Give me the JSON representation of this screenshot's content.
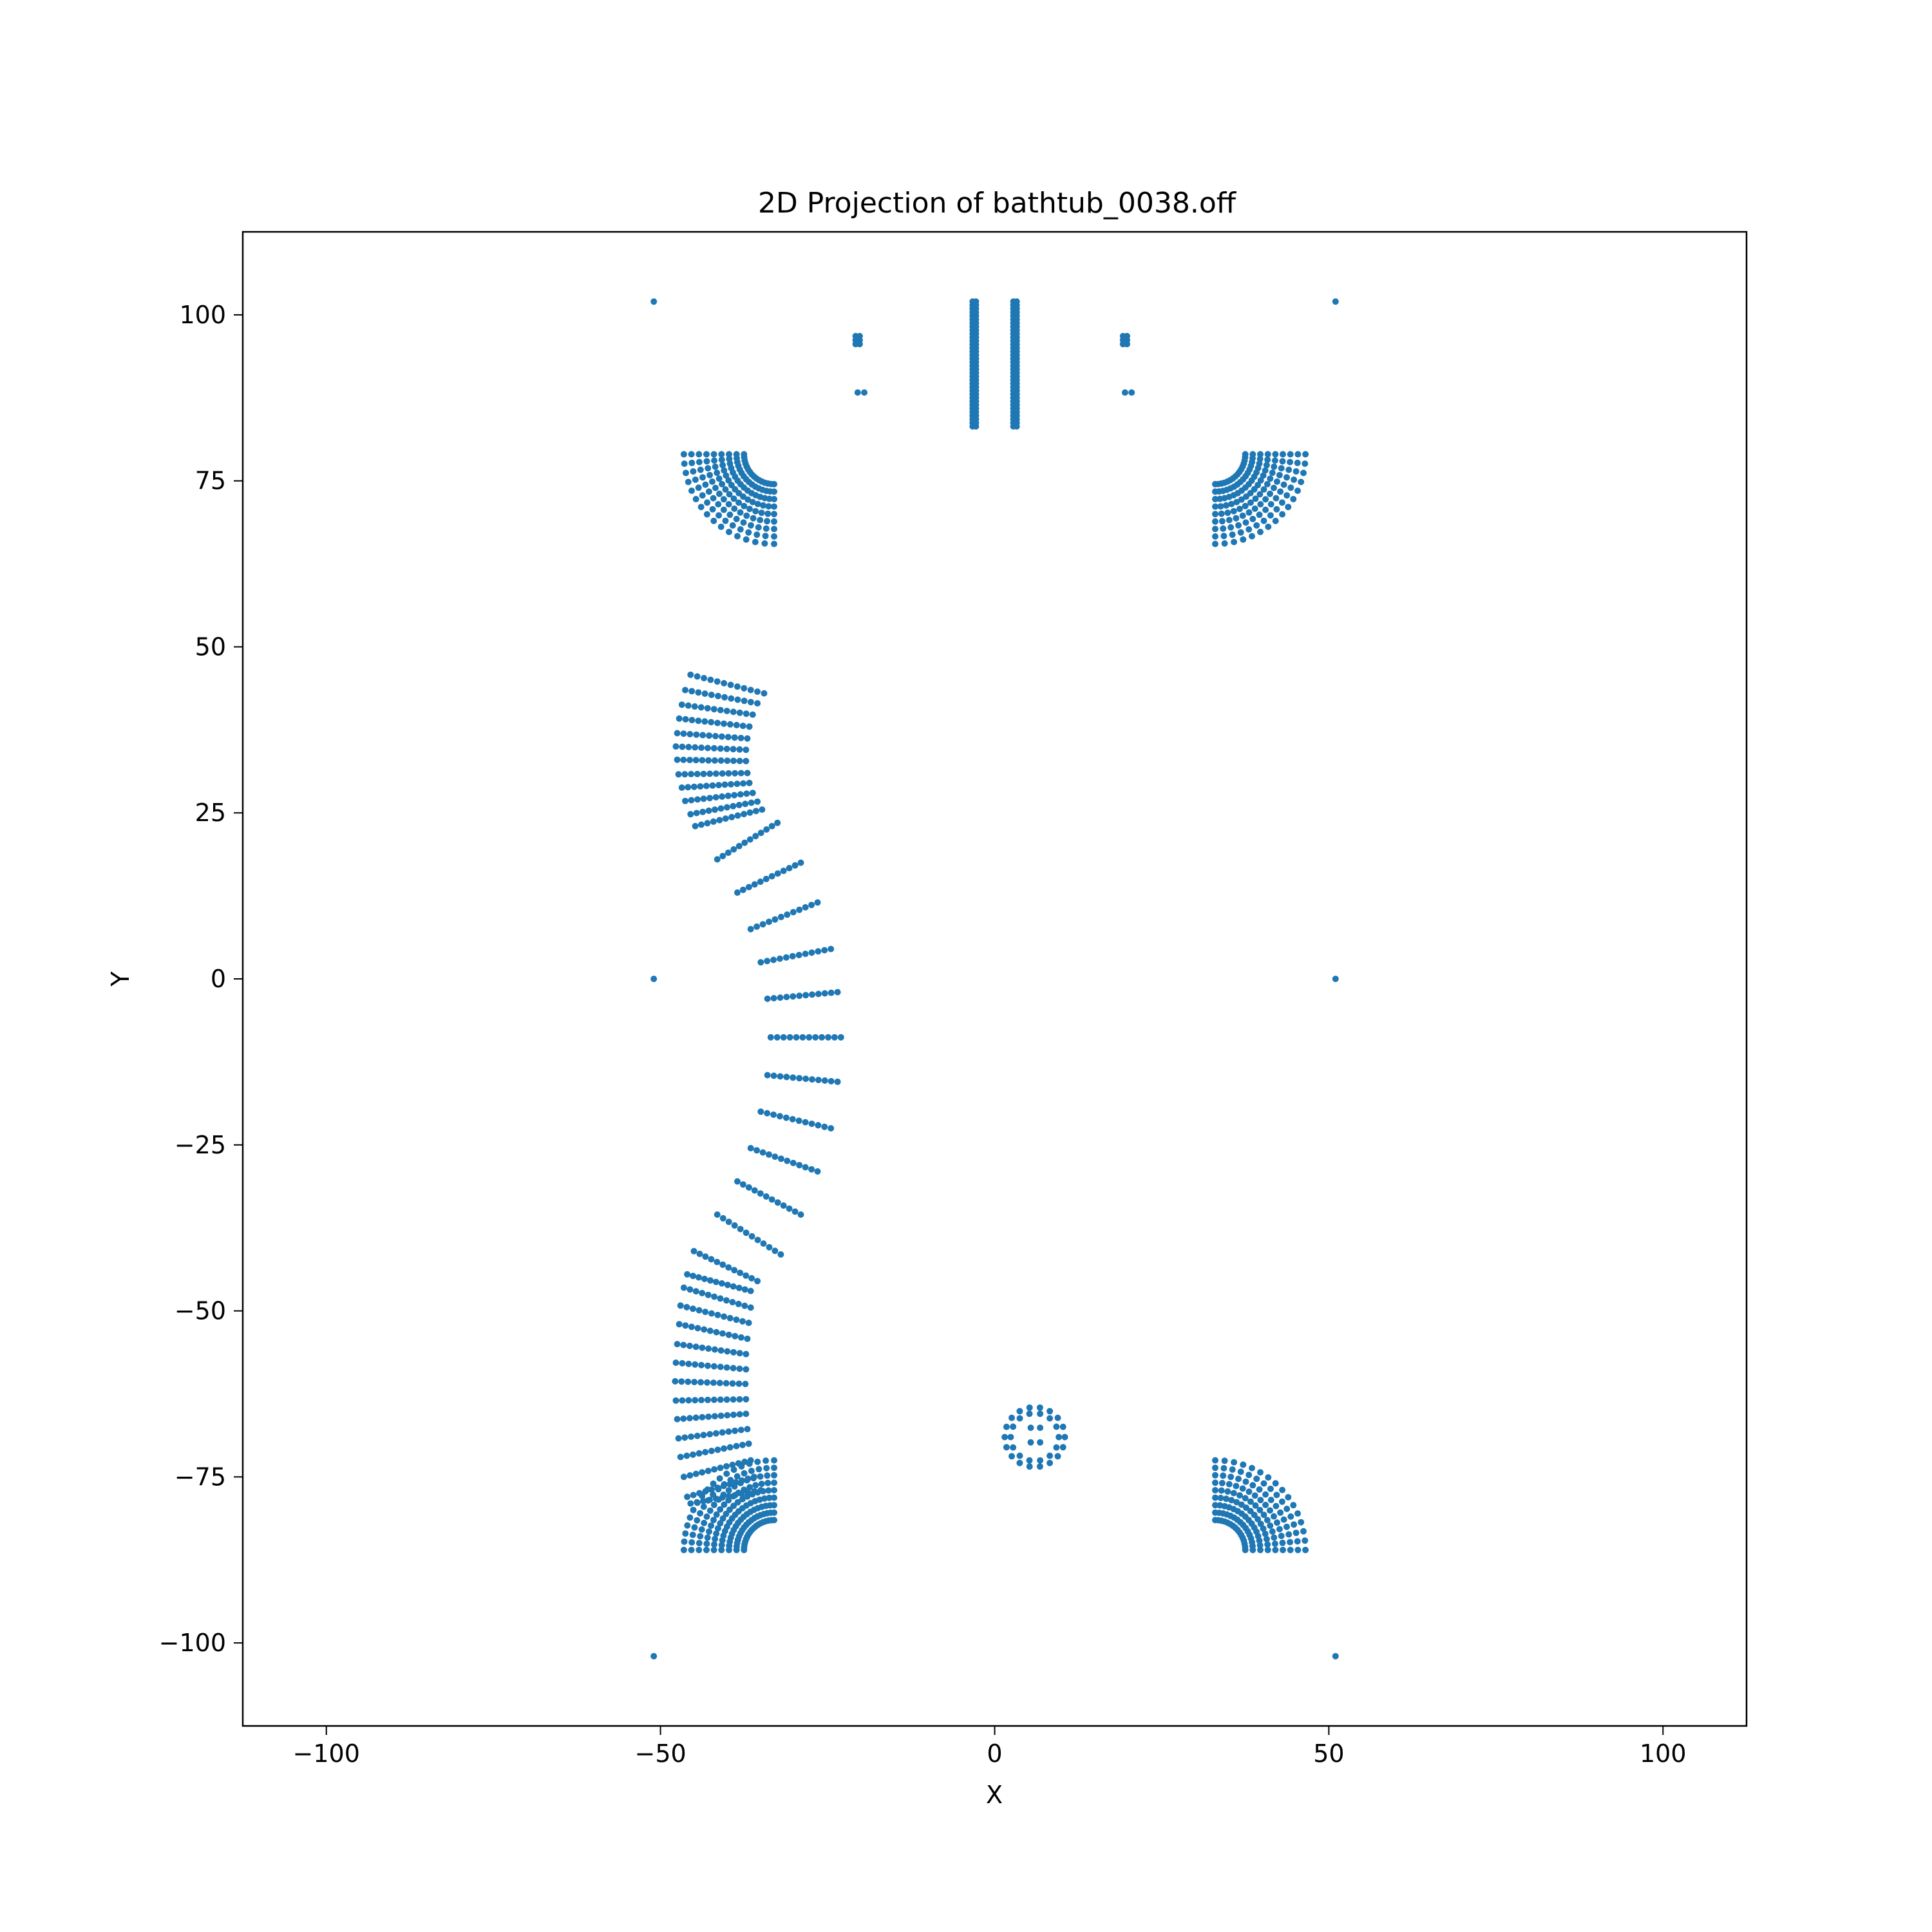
{
  "chart_data": {
    "type": "scatter",
    "title": "2D Projection of bathtub_0038.off",
    "xlabel": "X",
    "ylabel": "Y",
    "xlim": [
      -112.5,
      112.5
    ],
    "ylim": [
      -112.5,
      112.5
    ],
    "xticks": [
      -100,
      -50,
      0,
      50,
      100
    ],
    "yticks": [
      -100,
      -75,
      -50,
      -25,
      0,
      25,
      50,
      75,
      100
    ],
    "xtick_labels": [
      "−100",
      "−50",
      "0",
      "50",
      "100"
    ],
    "ytick_labels": [
      "−100",
      "−75",
      "−50",
      "−25",
      "0",
      "25",
      "50",
      "75",
      "100"
    ],
    "grid": false,
    "legend": "none",
    "marker_color": "#1f77b4",
    "series": [
      {
        "points": [
          [
            -51,
            102
          ],
          [
            51,
            102
          ],
          [
            -51,
            0
          ],
          [
            51,
            0
          ],
          [
            -51,
            -102
          ],
          [
            51,
            -102
          ],
          [
            -20.5,
            88.3
          ],
          [
            -19.5,
            88.3
          ],
          [
            19.5,
            88.3
          ],
          [
            20.5,
            88.3
          ],
          [
            -20.8,
            96.8
          ],
          [
            -20.2,
            96.8
          ],
          [
            -20.8,
            96.2
          ],
          [
            -20.2,
            96.2
          ],
          [
            -20.8,
            95.6
          ],
          [
            -20.2,
            95.6
          ],
          [
            19.2,
            96.8
          ],
          [
            19.8,
            96.8
          ],
          [
            19.2,
            96.2
          ],
          [
            19.8,
            96.2
          ],
          [
            19.2,
            95.6
          ],
          [
            19.8,
            95.6
          ]
        ],
        "vertical_lines": [
          {
            "x": [
              -3.3,
              -2.8
            ],
            "y_from": 83.2,
            "y_to": 102,
            "count": 36
          },
          {
            "x": [
              2.8,
              3.3
            ],
            "y_from": 83.2,
            "y_to": 102,
            "count": 36
          }
        ],
        "corner_fans": [
          {
            "name": "top-left",
            "cx": -33,
            "cy": 79,
            "inner_r": 4.5,
            "outer_r": 13.5,
            "a0": 0,
            "a1": 90,
            "rays": 16,
            "pts": 9,
            "dir": [
              -1,
              -1
            ]
          },
          {
            "name": "top-right",
            "cx": 33,
            "cy": 79,
            "inner_r": 4.5,
            "outer_r": 13.5,
            "a0": 0,
            "a1": 90,
            "rays": 16,
            "pts": 9,
            "dir": [
              1,
              -1
            ]
          },
          {
            "name": "bottom-left",
            "cx": -33,
            "cy": -86,
            "inner_r": 4.5,
            "outer_r": 13.5,
            "a0": 0,
            "a1": 90,
            "rays": 18,
            "pts": 9,
            "dir": [
              -1,
              1
            ]
          },
          {
            "name": "bottom-right",
            "cx": 33,
            "cy": -86,
            "inner_r": 4.5,
            "outer_r": 13.5,
            "a0": 0,
            "a1": 90,
            "rays": 16,
            "pts": 9,
            "dir": [
              1,
              1
            ]
          }
        ],
        "left_segments": [
          {
            "inner": [
              -34.5,
              43.0
            ],
            "outer": [
              -45.5,
              45.8
            ]
          },
          {
            "inner": [
              -35.5,
              41.5
            ],
            "outer": [
              -46.3,
              43.5
            ]
          },
          {
            "inner": [
              -36.2,
              39.8
            ],
            "outer": [
              -46.8,
              41.3
            ]
          },
          {
            "inner": [
              -36.7,
              38.0
            ],
            "outer": [
              -47.2,
              39.2
            ]
          },
          {
            "inner": [
              -37.0,
              36.2
            ],
            "outer": [
              -47.5,
              37.0
            ]
          },
          {
            "inner": [
              -37.2,
              34.5
            ],
            "outer": [
              -47.7,
              35.0
            ]
          },
          {
            "inner": [
              -37.2,
              32.8
            ],
            "outer": [
              -47.5,
              33.0
            ]
          },
          {
            "inner": [
              -37.0,
              31.0
            ],
            "outer": [
              -47.3,
              30.8
            ]
          },
          {
            "inner": [
              -36.7,
              29.5
            ],
            "outer": [
              -46.8,
              28.8
            ]
          },
          {
            "inner": [
              -36.2,
              28.0
            ],
            "outer": [
              -46.3,
              26.8
            ]
          },
          {
            "inner": [
              -35.5,
              26.7
            ],
            "outer": [
              -45.5,
              24.8
            ]
          },
          {
            "inner": [
              -34.8,
              25.5
            ],
            "outer": [
              -44.8,
              23.0
            ]
          },
          {
            "inner": [
              -32.5,
              23.5
            ],
            "outer": [
              -41.5,
              18.0
            ]
          },
          {
            "inner": [
              -29.0,
              17.5
            ],
            "outer": [
              -38.5,
              13.0
            ]
          },
          {
            "inner": [
              -26.5,
              11.5
            ],
            "outer": [
              -36.5,
              7.5
            ]
          },
          {
            "inner": [
              -24.5,
              4.5
            ],
            "outer": [
              -35.0,
              2.5
            ]
          },
          {
            "inner": [
              -23.5,
              -2.0
            ],
            "outer": [
              -34.0,
              -3.0
            ]
          },
          {
            "inner": [
              -23.0,
              -8.8
            ],
            "outer": [
              -33.5,
              -8.8
            ]
          },
          {
            "inner": [
              -23.5,
              -15.5
            ],
            "outer": [
              -34.0,
              -14.5
            ]
          },
          {
            "inner": [
              -24.5,
              -22.5
            ],
            "outer": [
              -35.0,
              -20.0
            ]
          },
          {
            "inner": [
              -26.5,
              -29.0
            ],
            "outer": [
              -36.5,
              -25.5
            ]
          },
          {
            "inner": [
              -29.0,
              -35.5
            ],
            "outer": [
              -38.5,
              -30.5
            ]
          },
          {
            "inner": [
              -32.0,
              -41.5
            ],
            "outer": [
              -41.5,
              -35.5
            ]
          },
          {
            "inner": [
              -35.5,
              -45.5
            ],
            "outer": [
              -45.0,
              -41.0
            ]
          },
          {
            "inner": [
              -36.5,
              -47.0
            ],
            "outer": [
              -46.0,
              -44.5
            ]
          },
          {
            "inner": [
              -36.5,
              -49.5
            ],
            "outer": [
              -46.5,
              -46.5
            ]
          },
          {
            "inner": [
              -36.8,
              -51.8
            ],
            "outer": [
              -47.0,
              -49.2
            ]
          },
          {
            "inner": [
              -37.0,
              -54.2
            ],
            "outer": [
              -47.2,
              -52.0
            ]
          },
          {
            "inner": [
              -37.2,
              -56.5
            ],
            "outer": [
              -47.5,
              -55.0
            ]
          },
          {
            "inner": [
              -37.2,
              -58.8
            ],
            "outer": [
              -47.7,
              -57.8
            ]
          },
          {
            "inner": [
              -37.3,
              -61.0
            ],
            "outer": [
              -47.8,
              -60.6
            ]
          },
          {
            "inner": [
              -37.2,
              -63.3
            ],
            "outer": [
              -47.7,
              -63.5
            ]
          },
          {
            "inner": [
              -37.2,
              -65.5
            ],
            "outer": [
              -47.5,
              -66.3
            ]
          },
          {
            "inner": [
              -37.0,
              -67.8
            ],
            "outer": [
              -47.3,
              -69.2
            ]
          },
          {
            "inner": [
              -36.8,
              -70.0
            ],
            "outer": [
              -47.0,
              -72.0
            ]
          },
          {
            "inner": [
              -36.5,
              -72.5
            ],
            "outer": [
              -46.5,
              -75.0
            ]
          },
          {
            "inner": [
              -36.0,
              -75.0
            ],
            "outer": [
              -46.0,
              -78.0
            ]
          },
          {
            "inner": [
              -35.0,
              -77.0
            ],
            "outer": [
              -45.5,
              -79.0
            ]
          }
        ],
        "ring": {
          "cx": 6,
          "cy": -69,
          "radii": [
            4.5,
            3.6
          ],
          "count": [
            18,
            14
          ]
        },
        "ring_center": [
          [
            5.4,
            -67.6
          ],
          [
            6.8,
            -67.6
          ],
          [
            5.4,
            -69.8
          ],
          [
            6.8,
            -69.8
          ]
        ]
      }
    ]
  }
}
